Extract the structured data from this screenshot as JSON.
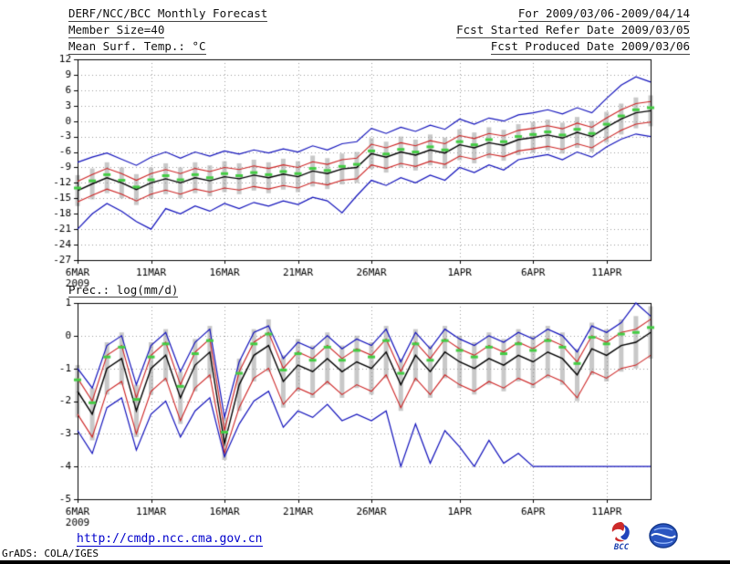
{
  "header": {
    "title_left": "DERF/NCC/BCC Monthly Forecast",
    "date_range": "For 2009/03/06-2009/04/14",
    "member_size": "Member Size=40",
    "refer_date": "Fcst Started Refer Date 2009/03/05",
    "temp_title": "Mean Surf. Temp.: °C",
    "produced_date": "Fcst Produced Date 2009/03/06"
  },
  "footer": {
    "url": "http://cmdp.ncc.cma.gov.cn",
    "credit": "GrADS: COLA/IGES",
    "bcc_label": "BCC"
  },
  "colors": {
    "max_min_line": "#1111bb",
    "quartile_line": "#cc2222",
    "mean_line": "#000000",
    "ensemble_marker": "#44cc44",
    "spread_bar": "#c8c8c8",
    "grid": "#999999",
    "url_text": "#0000cc"
  },
  "chart_data": [
    {
      "type": "line",
      "title": "Mean Surf. Temp.: °C",
      "ylim": [
        -27,
        12
      ],
      "yticks": [
        12,
        9,
        6,
        3,
        0,
        -3,
        -6,
        -9,
        -12,
        -15,
        -18,
        -21,
        -24,
        -27
      ],
      "x_count": 40,
      "xticks": [
        {
          "pos": 0,
          "label": "6MAR",
          "sublabel": "2009"
        },
        {
          "pos": 5,
          "label": "11MAR"
        },
        {
          "pos": 10,
          "label": "16MAR"
        },
        {
          "pos": 15,
          "label": "21MAR"
        },
        {
          "pos": 20,
          "label": "26MAR"
        },
        {
          "pos": 26,
          "label": "1APR"
        },
        {
          "pos": 31,
          "label": "6APR"
        },
        {
          "pos": 36,
          "label": "11APR"
        }
      ],
      "bars": {
        "color": "#c8c8c8",
        "high": [
          -10.5,
          -9.2,
          -8.0,
          -9.0,
          -10.3,
          -9.0,
          -8.2,
          -9.0,
          -8.0,
          -8.6,
          -7.8,
          -8.2,
          -7.5,
          -8.0,
          -7.3,
          -7.8,
          -6.7,
          -7.2,
          -6.3,
          -6.0,
          -3.3,
          -4.0,
          -3.0,
          -3.6,
          -2.6,
          -3.2,
          -1.6,
          -2.2,
          -1.2,
          -1.7,
          -0.6,
          -0.2,
          0.3,
          -0.3,
          0.8,
          0.0,
          1.8,
          3.4,
          4.6,
          5.0
        ],
        "low": [
          -16.5,
          -15.2,
          -14.0,
          -15.0,
          -16.3,
          -15.0,
          -14.2,
          -15.0,
          -14.0,
          -14.6,
          -13.8,
          -14.2,
          -13.5,
          -14.0,
          -13.3,
          -13.8,
          -12.7,
          -13.2,
          -12.3,
          -12.0,
          -9.3,
          -10.0,
          -9.0,
          -9.6,
          -8.6,
          -9.2,
          -7.6,
          -8.2,
          -7.2,
          -7.7,
          -6.6,
          -6.2,
          -5.7,
          -6.3,
          -5.2,
          -6.0,
          -4.2,
          -2.6,
          -1.4,
          -1.0
        ]
      },
      "series": [
        {
          "name": "ensemble-max",
          "color": "#1111bb",
          "width": 1.2,
          "values": [
            -8.0,
            -7.0,
            -6.2,
            -7.4,
            -8.6,
            -7.0,
            -6.0,
            -7.2,
            -6.0,
            -6.8,
            -5.8,
            -6.4,
            -5.6,
            -6.2,
            -5.4,
            -6.0,
            -4.8,
            -5.6,
            -4.4,
            -4.0,
            -1.4,
            -2.4,
            -1.2,
            -2.0,
            -0.8,
            -1.6,
            0.4,
            -0.6,
            0.6,
            0.0,
            1.2,
            1.6,
            2.2,
            1.4,
            2.6,
            1.6,
            4.4,
            7.0,
            8.6,
            7.6
          ]
        },
        {
          "name": "upper-quartile",
          "color": "#cc2222",
          "width": 1.1,
          "values": [
            -11.7,
            -10.4,
            -9.2,
            -10.2,
            -11.5,
            -10.2,
            -9.4,
            -10.2,
            -9.2,
            -9.8,
            -9.0,
            -9.4,
            -8.7,
            -9.2,
            -8.5,
            -9.0,
            -7.9,
            -8.4,
            -7.5,
            -7.2,
            -4.5,
            -5.2,
            -4.2,
            -4.8,
            -3.8,
            -4.4,
            -2.8,
            -3.4,
            -2.4,
            -2.9,
            -1.8,
            -1.4,
            -0.9,
            -1.5,
            -0.4,
            -1.2,
            0.6,
            2.2,
            3.4,
            3.8
          ]
        },
        {
          "name": "lower-quartile",
          "color": "#cc2222",
          "width": 1.1,
          "values": [
            -15.7,
            -14.4,
            -13.2,
            -14.2,
            -15.5,
            -14.2,
            -13.4,
            -14.2,
            -13.2,
            -13.8,
            -13.0,
            -13.4,
            -12.7,
            -13.2,
            -12.5,
            -13.0,
            -11.9,
            -12.4,
            -11.5,
            -11.2,
            -8.5,
            -9.2,
            -8.2,
            -8.8,
            -7.8,
            -8.4,
            -6.8,
            -7.4,
            -6.4,
            -6.9,
            -5.8,
            -5.4,
            -4.9,
            -5.5,
            -4.4,
            -5.2,
            -3.4,
            -1.8,
            -0.6,
            -0.2
          ]
        },
        {
          "name": "ensemble-min",
          "color": "#1111bb",
          "width": 1.2,
          "values": [
            -21.0,
            -18.0,
            -16.0,
            -17.5,
            -19.5,
            -21.0,
            -17.0,
            -18.0,
            -16.5,
            -17.5,
            -16.0,
            -17.0,
            -15.8,
            -16.5,
            -15.5,
            -16.2,
            -14.8,
            -15.5,
            -17.8,
            -14.5,
            -11.5,
            -12.5,
            -11.0,
            -12.0,
            -10.5,
            -11.5,
            -9.0,
            -10.0,
            -8.5,
            -9.5,
            -7.5,
            -7.0,
            -6.5,
            -7.5,
            -6.0,
            -7.0,
            -5.0,
            -3.5,
            -2.5,
            -3.0
          ]
        },
        {
          "name": "ensemble-mean",
          "color": "#000000",
          "width": 1.4,
          "values": [
            -13.5,
            -12.2,
            -11.0,
            -12.0,
            -13.3,
            -12.0,
            -11.2,
            -12.0,
            -11.0,
            -11.6,
            -10.8,
            -11.2,
            -10.5,
            -11.0,
            -10.3,
            -10.8,
            -9.7,
            -10.2,
            -9.3,
            -9.0,
            -6.3,
            -7.0,
            -6.0,
            -6.6,
            -5.6,
            -6.2,
            -4.6,
            -5.2,
            -4.2,
            -4.7,
            -3.6,
            -3.2,
            -2.7,
            -3.3,
            -2.2,
            -3.0,
            -1.2,
            0.4,
            1.6,
            2.0
          ]
        },
        {
          "name": "ensemble-median",
          "color": "#44cc44",
          "width": 3,
          "style": "dashes",
          "values": [
            -13.0,
            -11.6,
            -10.4,
            -11.5,
            -12.8,
            -11.4,
            -10.6,
            -11.4,
            -10.4,
            -11.0,
            -10.2,
            -10.6,
            -10.0,
            -10.4,
            -9.8,
            -10.2,
            -9.2,
            -9.6,
            -8.8,
            -8.4,
            -5.8,
            -6.4,
            -5.5,
            -6.0,
            -5.0,
            -5.6,
            -4.0,
            -4.6,
            -3.6,
            -4.0,
            -3.0,
            -2.6,
            -2.1,
            -2.7,
            -1.6,
            -2.4,
            -0.6,
            1.0,
            2.2,
            2.6
          ]
        }
      ]
    },
    {
      "type": "line",
      "title": "Prec.: log(mm/d)",
      "ylim": [
        -5,
        1
      ],
      "yticks": [
        1,
        0,
        -1,
        -2,
        -3,
        -4,
        -5
      ],
      "x_count": 40,
      "xticks": [
        {
          "pos": 0,
          "label": "6MAR",
          "sublabel": "2009"
        },
        {
          "pos": 5,
          "label": "11MAR"
        },
        {
          "pos": 10,
          "label": "16MAR"
        },
        {
          "pos": 15,
          "label": "21MAR"
        },
        {
          "pos": 20,
          "label": "26MAR"
        },
        {
          "pos": 26,
          "label": "1APR"
        },
        {
          "pos": 31,
          "label": "6APR"
        },
        {
          "pos": 36,
          "label": "11APR"
        }
      ],
      "bars": {
        "color": "#c8c8c8",
        "high": [
          -0.9,
          -1.6,
          -0.2,
          0.1,
          -1.5,
          -0.2,
          0.2,
          -1.1,
          -0.1,
          0.3,
          -2.5,
          -0.7,
          0.2,
          0.5,
          -0.6,
          -0.1,
          -0.3,
          0.1,
          -0.3,
          0.0,
          -0.2,
          0.3,
          -0.7,
          0.2,
          -0.3,
          0.3,
          0.0,
          -0.2,
          0.1,
          -0.1,
          0.2,
          0.0,
          0.3,
          0.1,
          -0.4,
          0.4,
          0.2,
          0.5,
          0.6,
          0.9
        ],
        "low": [
          -2.5,
          -3.2,
          -1.8,
          -1.5,
          -3.1,
          -1.8,
          -1.4,
          -2.7,
          -1.7,
          -1.3,
          -3.8,
          -2.3,
          -1.4,
          -1.1,
          -2.2,
          -1.7,
          -1.9,
          -1.5,
          -1.9,
          -1.6,
          -1.8,
          -1.3,
          -2.3,
          -1.4,
          -1.9,
          -1.3,
          -1.6,
          -1.8,
          -1.5,
          -1.7,
          -1.4,
          -1.6,
          -1.3,
          -1.5,
          -2.0,
          -1.2,
          -1.4,
          -1.1,
          -1.0,
          -0.7
        ]
      },
      "series": [
        {
          "name": "ensemble-max",
          "color": "#1111bb",
          "width": 1.2,
          "values": [
            -1.0,
            -1.6,
            -0.3,
            0.0,
            -1.5,
            -0.3,
            0.1,
            -1.1,
            -0.2,
            0.2,
            -2.5,
            -0.8,
            0.1,
            0.3,
            -0.7,
            -0.2,
            -0.4,
            0.0,
            -0.4,
            -0.1,
            -0.3,
            0.2,
            -0.8,
            0.1,
            -0.4,
            0.2,
            -0.1,
            -0.3,
            0.0,
            -0.2,
            0.1,
            -0.1,
            0.2,
            0.0,
            -0.5,
            0.3,
            0.1,
            0.4,
            1.0,
            0.6
          ]
        },
        {
          "name": "upper-quartile",
          "color": "#cc2222",
          "width": 1.1,
          "values": [
            -1.3,
            -2.0,
            -0.6,
            -0.3,
            -1.9,
            -0.6,
            -0.2,
            -1.5,
            -0.5,
            -0.1,
            -2.9,
            -1.1,
            -0.2,
            0.1,
            -1.0,
            -0.5,
            -0.7,
            -0.3,
            -0.7,
            -0.4,
            -0.6,
            -0.1,
            -1.1,
            -0.2,
            -0.7,
            -0.1,
            -0.4,
            -0.6,
            -0.3,
            -0.5,
            -0.2,
            -0.4,
            -0.1,
            -0.3,
            -0.8,
            0.0,
            -0.2,
            0.1,
            0.2,
            0.5
          ]
        },
        {
          "name": "lower-quartile",
          "color": "#cc2222",
          "width": 1.1,
          "values": [
            -2.4,
            -3.1,
            -1.7,
            -1.4,
            -3.0,
            -1.7,
            -1.3,
            -2.6,
            -1.6,
            -1.2,
            -3.6,
            -2.2,
            -1.3,
            -1.0,
            -2.1,
            -1.6,
            -1.8,
            -1.4,
            -1.8,
            -1.5,
            -1.7,
            -1.2,
            -2.2,
            -1.3,
            -1.8,
            -1.2,
            -1.5,
            -1.7,
            -1.4,
            -1.6,
            -1.3,
            -1.5,
            -1.2,
            -1.4,
            -1.9,
            -1.1,
            -1.3,
            -1.0,
            -0.9,
            -0.6
          ]
        },
        {
          "name": "ensemble-min",
          "color": "#1111bb",
          "width": 1.2,
          "values": [
            -2.9,
            -3.6,
            -2.2,
            -1.9,
            -3.5,
            -2.4,
            -2.0,
            -3.1,
            -2.3,
            -1.9,
            -3.7,
            -2.7,
            -2.0,
            -1.7,
            -2.8,
            -2.3,
            -2.5,
            -2.1,
            -2.6,
            -2.4,
            -2.6,
            -2.3,
            -4.0,
            -2.7,
            -3.9,
            -2.9,
            -3.4,
            -4.0,
            -3.2,
            -3.9,
            -3.6,
            -4.0,
            -4.0,
            -4.0,
            -4.0,
            -4.0,
            -4.0,
            -4.0,
            -4.0,
            -4.0
          ]
        },
        {
          "name": "ensemble-mean",
          "color": "#000000",
          "width": 1.4,
          "values": [
            -1.7,
            -2.4,
            -1.0,
            -0.7,
            -2.3,
            -1.0,
            -0.6,
            -1.9,
            -0.9,
            -0.5,
            -3.3,
            -1.5,
            -0.6,
            -0.3,
            -1.4,
            -0.9,
            -1.1,
            -0.7,
            -1.1,
            -0.8,
            -1.0,
            -0.5,
            -1.5,
            -0.6,
            -1.1,
            -0.5,
            -0.8,
            -1.0,
            -0.7,
            -0.9,
            -0.6,
            -0.8,
            -0.5,
            -0.7,
            -1.2,
            -0.4,
            -0.6,
            -0.3,
            -0.2,
            0.1
          ]
        },
        {
          "name": "ensemble-median",
          "color": "#44cc44",
          "width": 3,
          "style": "dashes",
          "values": [
            -1.35,
            -2.05,
            -0.65,
            -0.35,
            -1.95,
            -0.65,
            -0.25,
            -1.55,
            -0.55,
            -0.15,
            -2.95,
            -1.15,
            -0.25,
            0.05,
            -1.05,
            -0.55,
            -0.75,
            -0.35,
            -0.75,
            -0.45,
            -0.65,
            -0.15,
            -1.15,
            -0.25,
            -0.75,
            -0.15,
            -0.45,
            -0.65,
            -0.35,
            -0.55,
            -0.25,
            -0.45,
            -0.15,
            -0.35,
            -0.85,
            -0.05,
            -0.25,
            0.05,
            0.1,
            0.25
          ]
        }
      ]
    }
  ]
}
